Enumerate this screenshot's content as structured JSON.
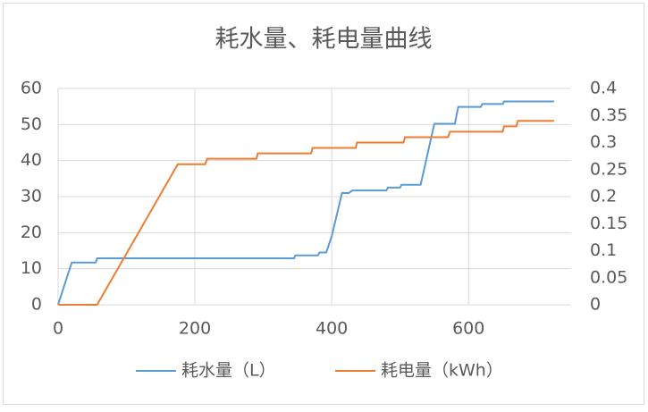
{
  "chart_data": {
    "type": "line",
    "title": "耗水量、耗电量曲线",
    "xlim": [
      0,
      750
    ],
    "xticks": [
      0,
      200,
      400,
      600
    ],
    "ylim": [
      0,
      60
    ],
    "yticks": [
      0,
      10,
      20,
      30,
      40,
      50,
      60
    ],
    "y2lim": [
      0,
      0.4
    ],
    "y2ticks": [
      0,
      0.05,
      0.1,
      0.15,
      0.2,
      0.25,
      0.3,
      0.35,
      0.4
    ],
    "grid": true,
    "legend": "bottom",
    "series": [
      {
        "name": "耗水量（L）",
        "color": "#5b9bd5",
        "x": [
          0,
          5,
          20,
          55,
          57,
          345,
          347,
          380,
          382,
          392,
          400,
          405,
          415,
          425,
          430,
          480,
          482,
          500,
          502,
          530,
          550,
          580,
          585,
          618,
          620,
          650,
          652,
          725
        ],
        "values": [
          0,
          3,
          11.7,
          11.7,
          12.9,
          12.9,
          13.7,
          13.7,
          14.5,
          14.5,
          19,
          23,
          31,
          31,
          31.7,
          31.7,
          32.5,
          32.5,
          33.3,
          33.3,
          50.2,
          50.2,
          54.9,
          54.9,
          55.7,
          55.7,
          56.4,
          56.4
        ]
      },
      {
        "name": "耗电量（kWh）",
        "color": "#ed7d31",
        "axis": "y2",
        "x": [
          0,
          57,
          175,
          215,
          218,
          290,
          292,
          370,
          372,
          435,
          437,
          505,
          507,
          570,
          573,
          650,
          652,
          670,
          672,
          725
        ],
        "values": [
          0,
          0,
          0.26,
          0.26,
          0.27,
          0.27,
          0.28,
          0.28,
          0.29,
          0.29,
          0.3,
          0.3,
          0.31,
          0.31,
          0.32,
          0.32,
          0.33,
          0.33,
          0.34,
          0.34
        ]
      }
    ]
  }
}
